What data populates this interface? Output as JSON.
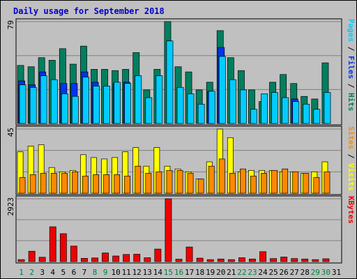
{
  "chart_data": {
    "type": "bar",
    "title": "Daily usage for September 2018",
    "days": [
      "1",
      "2",
      "3",
      "4",
      "5",
      "6",
      "7",
      "8",
      "9",
      "10",
      "11",
      "12",
      "13",
      "14",
      "15",
      "16",
      "17",
      "18",
      "19",
      "20",
      "21",
      "22",
      "23",
      "24",
      "25",
      "26",
      "27",
      "28",
      "29",
      "30",
      "31"
    ],
    "weekend_days": [
      "1",
      "2",
      "8",
      "9",
      "15",
      "16",
      "22",
      "23",
      "29",
      "30"
    ],
    "colors": {
      "title": "#0000cc",
      "hits": "#007f5f",
      "files": "#0033ee",
      "pages": "#00ccff",
      "visits": "#ffff00",
      "sites": "#ff8800",
      "kbytes": "#ee0000",
      "weekday_label": "#000000",
      "weekend_label": "#007f3f"
    },
    "panels": [
      {
        "name": "hits-files-pages",
        "max_label": "79",
        "max": 79,
        "legend": [
          {
            "text": "Pages",
            "color": "#00ccff"
          },
          {
            "text": " / ",
            "color": "#000000"
          },
          {
            "text": "Files",
            "color": "#0033ee"
          },
          {
            "text": " / ",
            "color": "#000000"
          },
          {
            "text": "Hits",
            "color": "#007f5f"
          }
        ],
        "series": [
          {
            "name": "Hits",
            "color": "#007f5f",
            "values": [
              45,
              44,
              51,
              49,
              58,
              46,
              60,
              42,
              42,
              41,
              42,
              55,
              26,
              42,
              79,
              44,
              40,
              26,
              32,
              72,
              51,
              41,
              26,
              17,
              32,
              38,
              31,
              21,
              19,
              47,
              0
            ]
          },
          {
            "name": "Files",
            "color": "#0033ee",
            "values": [
              33,
              30,
              40,
              0,
              31,
              31,
              40,
              32,
              0,
              31,
              32,
              0,
              0,
              0,
              0,
              0,
              0,
              0,
              25,
              59,
              0,
              0,
              0,
              0,
              0,
              0,
              19,
              0,
              0,
              0,
              0
            ]
          },
          {
            "name": "Pages",
            "color": "#00ccff",
            "values": [
              30,
              28,
              37,
              34,
              23,
              21,
              36,
              29,
              29,
              32,
              31,
              37,
              20,
              37,
              64,
              28,
              23,
              15,
              25,
              52,
              34,
              26,
              11,
              23,
              24,
              20,
              17,
              15,
              11,
              24,
              0
            ]
          }
        ]
      },
      {
        "name": "visits-sites",
        "max_label": "45",
        "max": 45,
        "legend": [
          {
            "text": "Sites",
            "color": "#ff8800"
          },
          {
            "text": " / ",
            "color": "#000000"
          },
          {
            "text": "Visits",
            "color": "#ffff00"
          }
        ],
        "series": [
          {
            "name": "Visits",
            "color": "#ffff00",
            "values": [
              29,
              33,
              34,
              18,
              15,
              16,
              27,
              25,
              24,
              25,
              29,
              32,
              19,
              32,
              19,
              17,
              15,
              10,
              22,
              45,
              39,
              15,
              16,
              16,
              16,
              15,
              15,
              14,
              15,
              22,
              0
            ]
          },
          {
            "name": "Sites",
            "color": "#ff8800",
            "values": [
              11,
              13,
              14,
              14,
              14,
              15,
              12,
              13,
              13,
              13,
              12,
              19,
              14,
              15,
              16,
              16,
              14,
              10,
              19,
              24,
              14,
              17,
              12,
              14,
              16,
              17,
              15,
              14,
              11,
              15,
              0
            ]
          }
        ]
      },
      {
        "name": "kbytes",
        "max_label": "2923",
        "max": 2923,
        "legend": [
          {
            "text": "KBytes",
            "color": "#ee0000"
          }
        ],
        "series": [
          {
            "name": "KBytes",
            "color": "#ee0000",
            "values": [
              90,
              480,
              200,
              1620,
              1300,
              720,
              150,
              170,
              400,
              260,
              330,
              340,
              180,
              580,
              2923,
              110,
              680,
              160,
              90,
              120,
              90,
              180,
              120,
              460,
              140,
              210,
              140,
              120,
              90,
              130,
              0
            ]
          }
        ]
      }
    ]
  }
}
